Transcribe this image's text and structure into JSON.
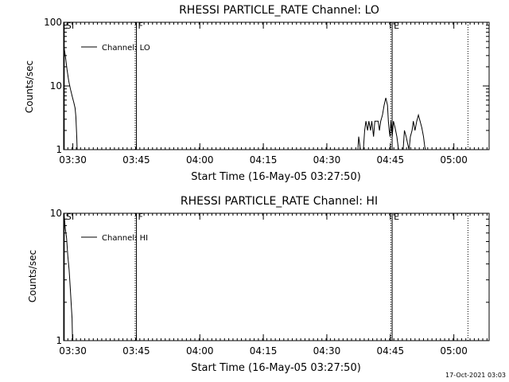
{
  "footer_timestamp": "17-Oct-2021 03:03",
  "chart_data": [
    {
      "type": "line",
      "title": "RHESSI PARTICLE_RATE Channel: LO",
      "xlabel": "Start Time (16-May-05 03:27:50)",
      "ylabel": "Counts/sec",
      "x_unit": "minutes after 03:27:50",
      "xlim": [
        0,
        100.5
      ],
      "ylim": [
        1,
        100
      ],
      "yscale": "log",
      "x_ticks": [
        {
          "label": "03:30",
          "value": 2.17
        },
        {
          "label": "03:45",
          "value": 17.17
        },
        {
          "label": "04:00",
          "value": 32.17
        },
        {
          "label": "04:15",
          "value": 47.17
        },
        {
          "label": "04:30",
          "value": 62.17
        },
        {
          "label": "04:45",
          "value": 77.17
        },
        {
          "label": "05:00",
          "value": 92.17
        }
      ],
      "y_ticks": [
        {
          "label": "1",
          "value": 1
        },
        {
          "label": "10",
          "value": 10
        },
        {
          "label": "100",
          "value": 100
        }
      ],
      "grid": false,
      "legend": {
        "position": "top-left",
        "label": "Channel: LO"
      },
      "series": [
        {
          "name": "Channel: LO",
          "segments": [
            [
              [
                0.0,
                44
              ],
              [
                0.4,
                30
              ],
              [
                0.8,
                18
              ],
              [
                1.2,
                12
              ],
              [
                1.6,
                9
              ],
              [
                2.0,
                7
              ],
              [
                2.4,
                5.5
              ],
              [
                2.7,
                4.5
              ],
              [
                2.9,
                3.3
              ],
              [
                3.1,
                1.6
              ],
              [
                3.2,
                1
              ]
            ],
            [
              [
                69.5,
                1
              ],
              [
                69.7,
                1.6
              ],
              [
                70.1,
                1
              ],
              [
                70.8,
                1
              ],
              [
                71.1,
                2
              ],
              [
                71.4,
                2.8
              ],
              [
                71.8,
                2
              ],
              [
                72.1,
                2.8
              ],
              [
                72.5,
                2
              ],
              [
                72.8,
                2.8
              ],
              [
                73.2,
                1.6
              ],
              [
                73.5,
                2.8
              ],
              [
                73.9,
                2.8
              ],
              [
                74.3,
                2.8
              ],
              [
                74.6,
                2
              ],
              [
                74.9,
                2.8
              ],
              [
                75.3,
                3.5
              ],
              [
                75.7,
                5
              ],
              [
                76.1,
                6.5
              ],
              [
                76.5,
                5
              ],
              [
                76.7,
                2.8
              ],
              [
                76.9,
                2
              ],
              [
                77.1,
                1.6
              ],
              [
                77.3,
                2.8
              ],
              [
                77.6,
                1.6
              ],
              [
                77.9,
                2.8
              ],
              [
                78.3,
                2.2
              ],
              [
                78.7,
                1.6
              ],
              [
                79.1,
                1
              ]
            ],
            [
              [
                80.2,
                1
              ],
              [
                80.5,
                2
              ],
              [
                80.9,
                1.6
              ],
              [
                81.3,
                1.2
              ],
              [
                81.6,
                1
              ],
              [
                81.9,
                1.6
              ],
              [
                82.3,
                2
              ],
              [
                82.6,
                2.8
              ],
              [
                83.0,
                2
              ],
              [
                83.4,
                2.8
              ],
              [
                83.8,
                3.5
              ],
              [
                84.2,
                2.8
              ],
              [
                84.6,
                2.2
              ],
              [
                85.0,
                1.6
              ],
              [
                85.3,
                1.1
              ],
              [
                85.5,
                1
              ]
            ]
          ]
        }
      ],
      "vlines": [
        {
          "label": "S",
          "x": 0.15,
          "style": "solid"
        },
        {
          "label": "F",
          "x": 17.2,
          "style": "solid"
        },
        {
          "label": "",
          "x": 16.9,
          "style": "dotted"
        },
        {
          "label": "E",
          "x": 77.6,
          "style": "solid"
        },
        {
          "label": "",
          "x": 77.3,
          "style": "dotted"
        },
        {
          "label": "",
          "x": 95.5,
          "style": "dotted"
        }
      ]
    },
    {
      "type": "line",
      "title": "RHESSI PARTICLE_RATE Channel: HI",
      "xlabel": "Start Time (16-May-05 03:27:50)",
      "ylabel": "Counts/sec",
      "x_unit": "minutes after 03:27:50",
      "xlim": [
        0,
        100.5
      ],
      "ylim": [
        1,
        10
      ],
      "yscale": "log",
      "x_ticks": [
        {
          "label": "03:30",
          "value": 2.17
        },
        {
          "label": "03:45",
          "value": 17.17
        },
        {
          "label": "04:00",
          "value": 32.17
        },
        {
          "label": "04:15",
          "value": 47.17
        },
        {
          "label": "04:30",
          "value": 62.17
        },
        {
          "label": "04:45",
          "value": 77.17
        },
        {
          "label": "05:00",
          "value": 92.17
        }
      ],
      "y_ticks": [
        {
          "label": "1",
          "value": 1
        },
        {
          "label": "10",
          "value": 10
        }
      ],
      "grid": false,
      "legend": {
        "position": "top-left",
        "label": "Channel: HI"
      },
      "series": [
        {
          "name": "Channel: HI",
          "segments": [
            [
              [
                0.0,
                10
              ],
              [
                0.2,
                9
              ],
              [
                0.4,
                7.6
              ],
              [
                0.7,
                6.4
              ],
              [
                1.0,
                4.6
              ],
              [
                1.3,
                3.6
              ],
              [
                1.6,
                2.5
              ],
              [
                1.8,
                1.9
              ],
              [
                2.0,
                1.5
              ],
              [
                2.1,
                1
              ]
            ]
          ]
        }
      ],
      "vlines": [
        {
          "label": "S",
          "x": 0.15,
          "style": "solid"
        },
        {
          "label": "F",
          "x": 17.2,
          "style": "solid"
        },
        {
          "label": "",
          "x": 16.9,
          "style": "dotted"
        },
        {
          "label": "E",
          "x": 77.6,
          "style": "solid"
        },
        {
          "label": "",
          "x": 77.3,
          "style": "dotted"
        },
        {
          "label": "",
          "x": 95.5,
          "style": "dotted"
        }
      ]
    }
  ]
}
